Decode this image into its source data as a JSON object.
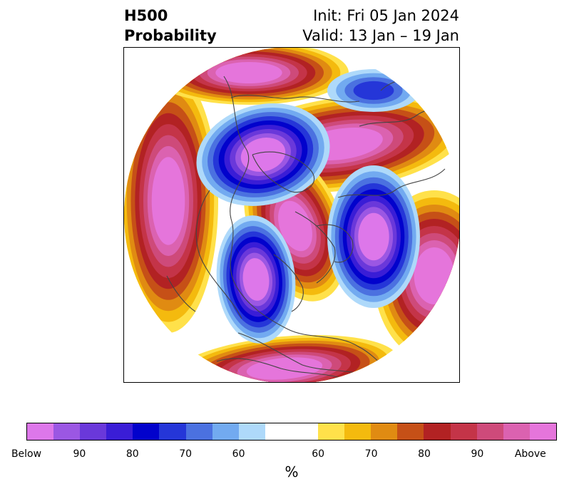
{
  "title": {
    "left_line1": "H500",
    "left_line2": "Probability",
    "right_line1": "Init: Fri 05 Jan 2024",
    "right_line2": "Valid: 13 Jan – 19 Jan"
  },
  "colorbar": {
    "unit": "%",
    "colors": [
      "#dd77ea",
      "#9b57e3",
      "#6a38da",
      "#3a1dd6",
      "#0202cc",
      "#2536d8",
      "#4b71e0",
      "#72aaf0",
      "#aed9fa",
      "#ffffff",
      "#ffe14a",
      "#f4ba0e",
      "#e08b12",
      "#c65017",
      "#b22223",
      "#c43448",
      "#ce4a7a",
      "#db62b0",
      "#e575db"
    ],
    "tick_labels": [
      "Below",
      "90",
      "80",
      "70",
      "60",
      "60",
      "70",
      "80",
      "90",
      "Above"
    ]
  },
  "map": {
    "projection": "north polar stereographic",
    "features": {
      "above_centers": [
        "north pacific",
        "arctic",
        "north atlantic",
        "southern united states"
      ],
      "below_centers": [
        "eastern siberia",
        "western canada",
        "northern europe"
      ]
    }
  }
}
